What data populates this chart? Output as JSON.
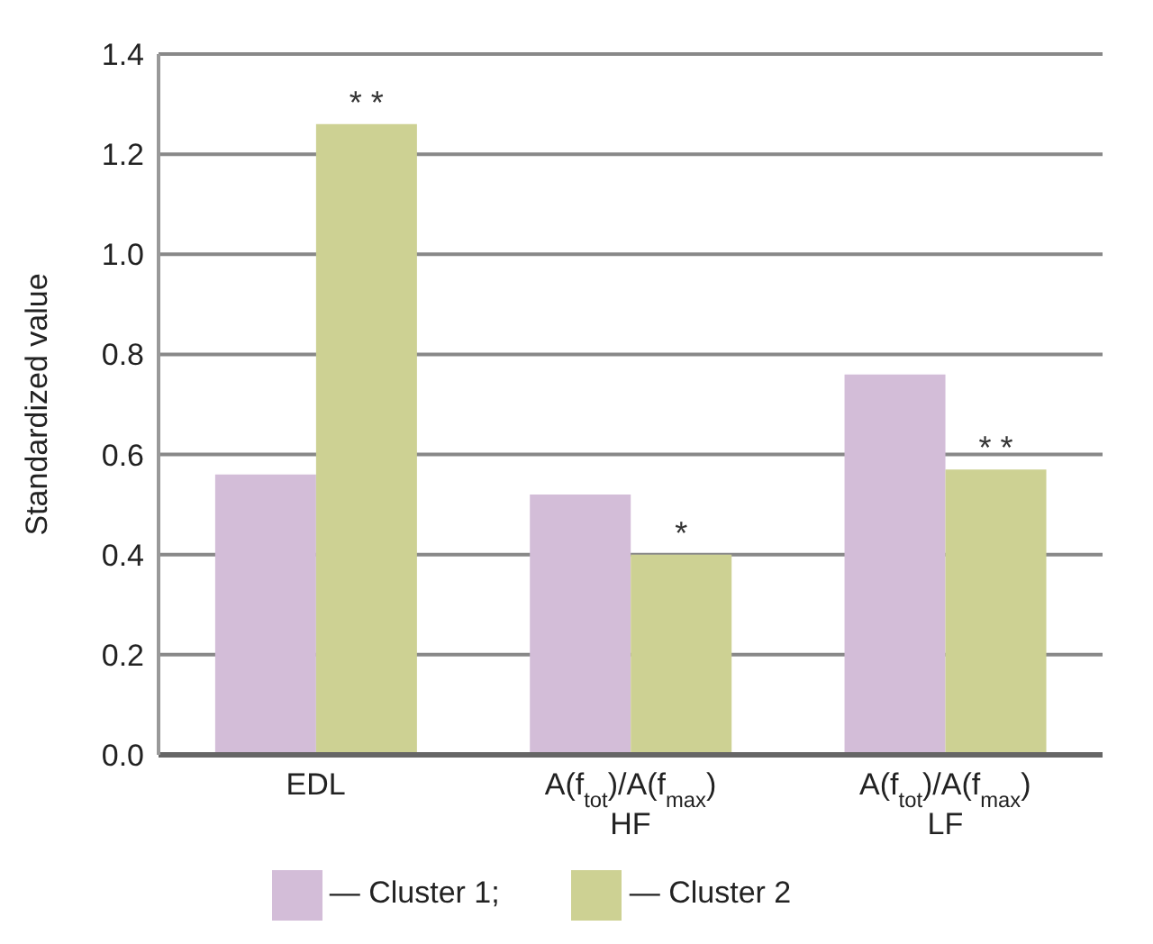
{
  "chart_data": {
    "type": "bar",
    "ylabel": "Standardized value",
    "categories": [
      "EDL",
      "A(f$_{tot}$)/A(f$_{max}$)\nHF",
      "A(f$_{tot}$)/A(f$_{max}$)\nLF"
    ],
    "series": [
      {
        "name": "— Cluster 1;",
        "color": "#d3bdd8",
        "values": [
          0.56,
          0.52,
          0.76
        ]
      },
      {
        "name": "— Cluster 2",
        "color": "#cdd193",
        "values": [
          1.26,
          0.4,
          0.57
        ]
      }
    ],
    "ylim": [
      0,
      1.4
    ],
    "yticks": [
      {
        "value": 0,
        "label": "0.0"
      },
      0.2,
      0.4,
      0.6,
      0.8,
      {
        "value": 1,
        "label": "1.0"
      },
      1.2,
      1.4
    ],
    "grid": "y",
    "legend": "bottom",
    "annotations": [
      {
        "text": "* *",
        "x": "EDL",
        "y": 1.26
      },
      {
        "text": "*",
        "x": "A(f$_{tot}$)/A(f$_{max}$)\nHF",
        "y": 0.4
      },
      {
        "text": "* *",
        "x": "A(f$_{tot}$)/A(f$_{max}$)\nLF",
        "y": 0.57
      }
    ]
  }
}
